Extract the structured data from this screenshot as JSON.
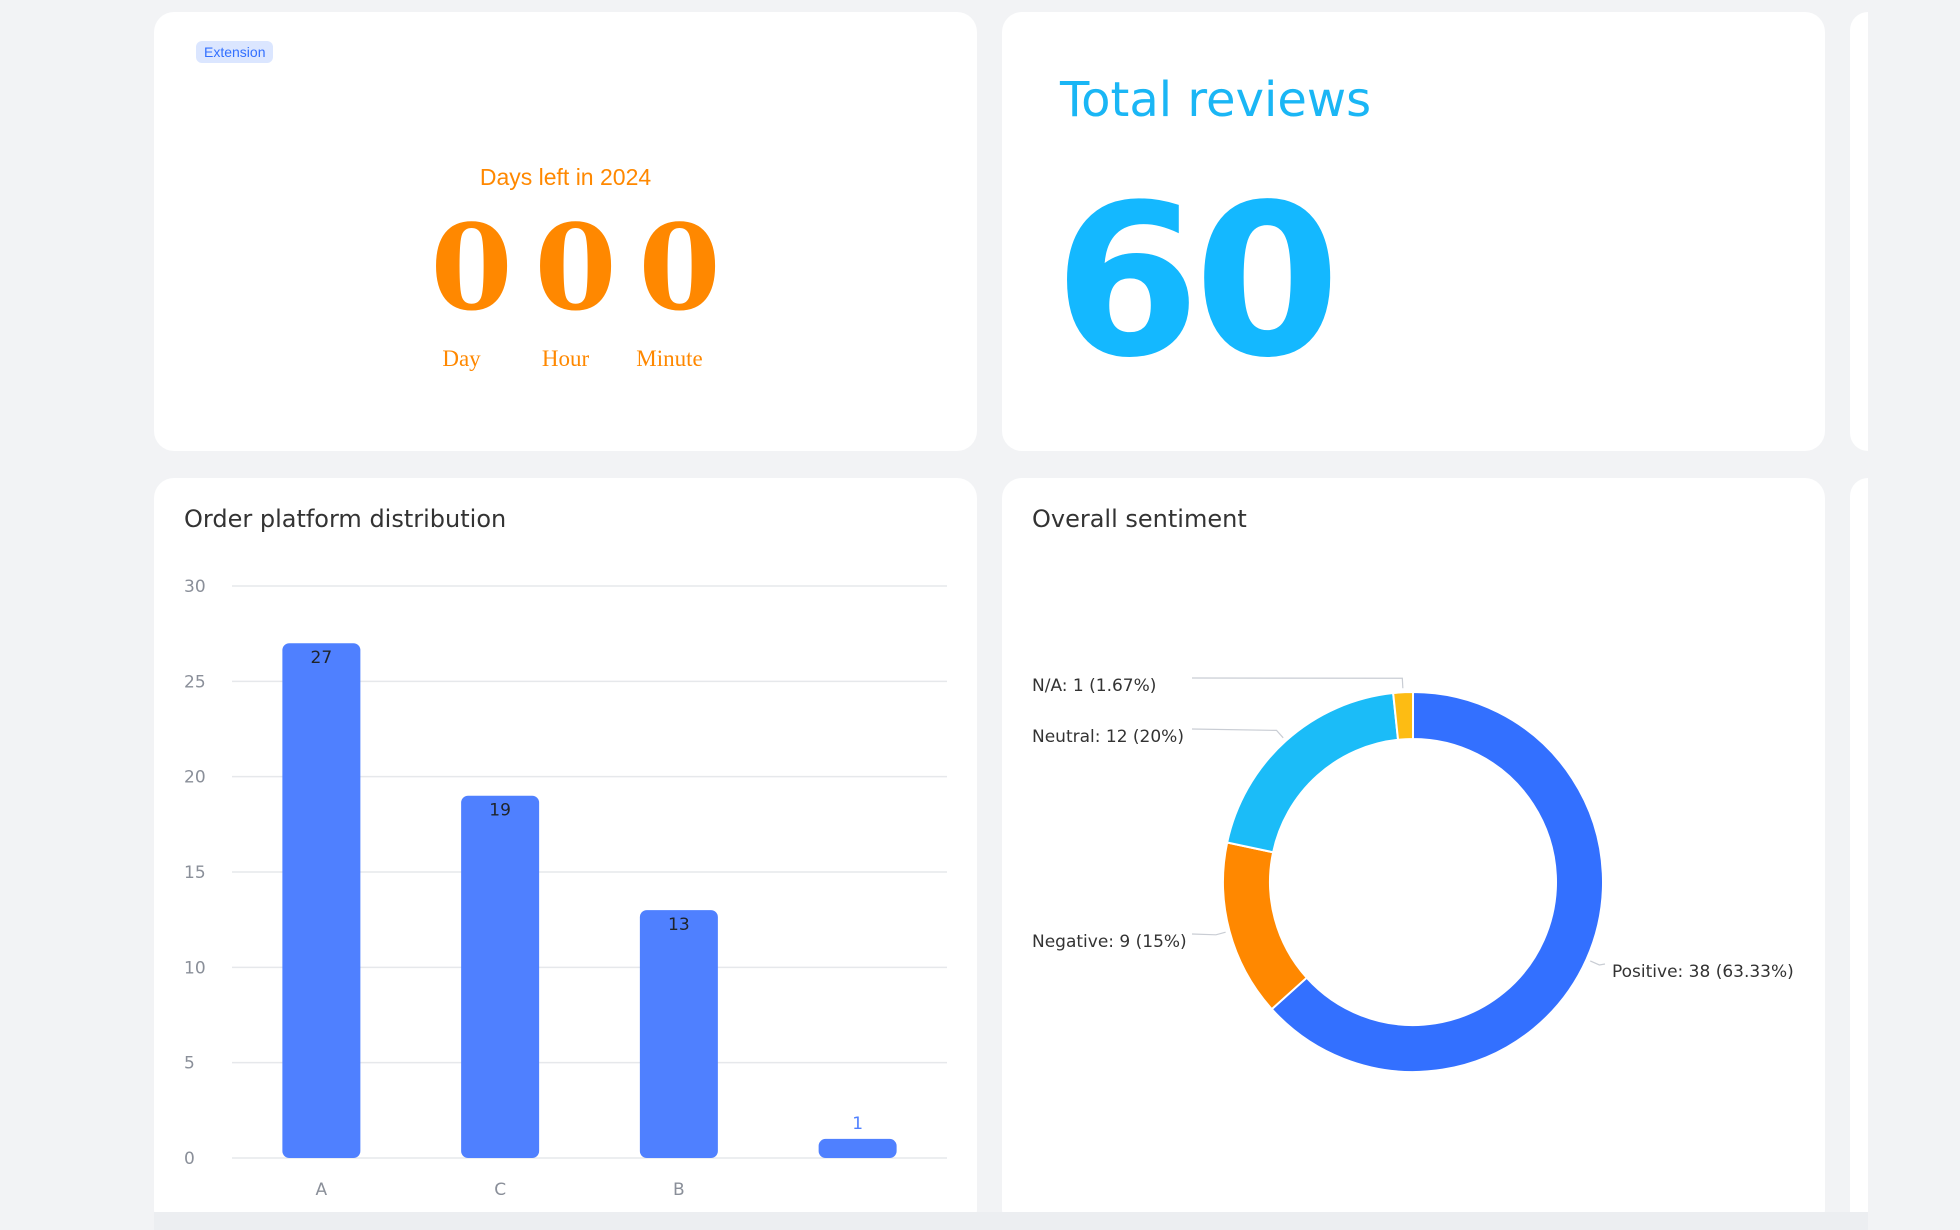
{
  "countdown": {
    "badge": "Extension",
    "title": "Days left in 2024",
    "units": [
      {
        "value": "0",
        "label": "Day"
      },
      {
        "value": "0",
        "label": "Hour"
      },
      {
        "value": "0",
        "label": "Minute"
      }
    ],
    "color": "#ff8800"
  },
  "reviews": {
    "title": "Total reviews",
    "value": "60",
    "color": "#14b8ff"
  },
  "platform_chart": {
    "title": "Order platform distribution"
  },
  "sentiment_chart": {
    "title": "Overall sentiment"
  },
  "chart_data": [
    {
      "type": "bar",
      "title": "Order platform distribution",
      "categories": [
        "A",
        "C",
        "B",
        ""
      ],
      "values": [
        27,
        19,
        13,
        1
      ],
      "ylim": [
        0,
        30
      ],
      "yticks": [
        0,
        5,
        10,
        15,
        20,
        25,
        30
      ],
      "grid": true,
      "color": "#4f80ff"
    },
    {
      "type": "pie",
      "title": "Overall sentiment",
      "donut": true,
      "slices": [
        {
          "name": "Positive",
          "value": 38,
          "label": "Positive: 38 (63.33%)",
          "color": "#3370ff"
        },
        {
          "name": "Negative",
          "value": 9,
          "label": "Negative: 9 (15%)",
          "color": "#ff8800"
        },
        {
          "name": "Neutral",
          "value": 12,
          "label": "Neutral: 12 (20%)",
          "color": "#1bbcf8"
        },
        {
          "name": "N/A",
          "value": 1,
          "label": "N/A: 1 (1.67%)",
          "color": "#fdbc13"
        }
      ]
    }
  ]
}
